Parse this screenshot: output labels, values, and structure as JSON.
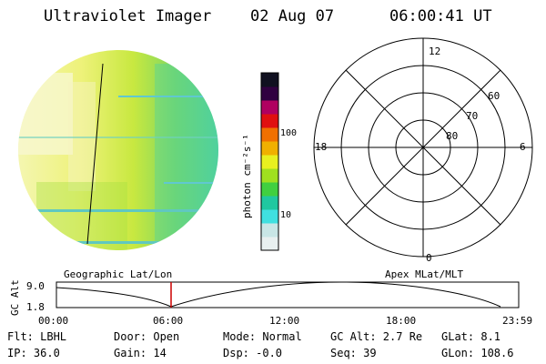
{
  "header": {
    "instrument": "Ultraviolet Imager",
    "date": "02 Aug 07",
    "time": "06:00:41 UT"
  },
  "colorbar": {
    "unit_label": "photon cm⁻²s⁻¹",
    "ticks": [
      "100",
      "10"
    ],
    "colors": [
      "#e8f0f0",
      "#c8e6e6",
      "#40e0e0",
      "#20c8a0",
      "#40d040",
      "#a0e020",
      "#e8f020",
      "#f0b000",
      "#f07000",
      "#e01010",
      "#b00060",
      "#300040",
      "#101020"
    ]
  },
  "polar": {
    "mlt_labels": {
      "top": "12",
      "left": "18",
      "right": "6",
      "bottom": "0"
    },
    "mlat_labels": [
      "60",
      "70",
      "80"
    ]
  },
  "timeline": {
    "ylabel": "GC Alt",
    "yticks": [
      "9.0",
      "1.8"
    ],
    "left_title": "Geographic Lat/Lon",
    "right_title": "Apex MLat/MLT",
    "xticks": [
      "00:00",
      "06:00",
      "12:00",
      "18:00",
      "23:59"
    ],
    "marker_color": "#cc0000"
  },
  "info": {
    "row1": {
      "flt": "Flt: LBHL",
      "door": "Door: Open",
      "mode": "Mode: Normal",
      "gcalt": "GC Alt: 2.7 Re",
      "glat": "GLat:   8.1"
    },
    "row2": {
      "ip": "IP: 36.0",
      "gain": "Gain: 14",
      "dsp": "Dsp:   -0.0",
      "seq": "Seq: 39",
      "glon": "GLon: 108.6"
    }
  }
}
